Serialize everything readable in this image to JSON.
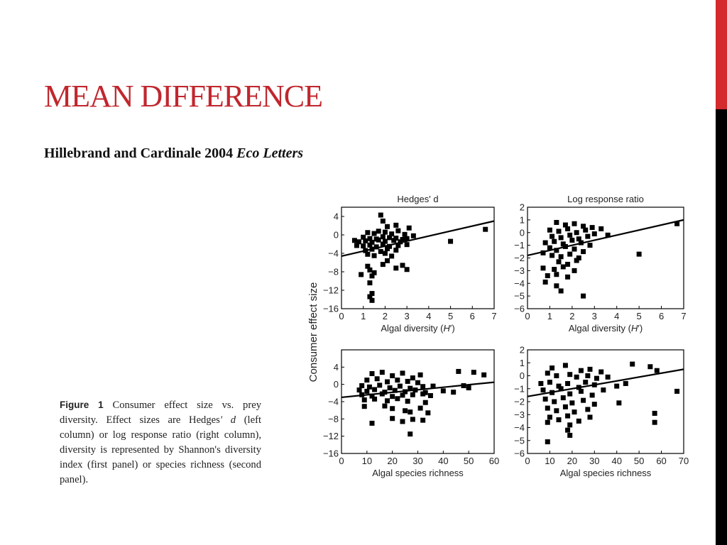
{
  "slide": {
    "title": "MEAN DIFFERENCE",
    "subtitle_text": "Hillebrand and Cardinale 2004",
    "subtitle_journal": "Eco Letters"
  },
  "caption": {
    "label": "Figure 1",
    "text_1": "Consumer effect size vs. prey diversity. Effect sizes are Hedges",
    "prime": "′",
    "d_symbol": "d",
    "text_2": "(left column) or log response ratio (right column), diversity is represented by Shannon's diversity index (first panel) or species richness (second panel)."
  },
  "figure": {
    "shared_ylabel": "Consumer effect size"
  },
  "colors": {
    "title": "#c0272d",
    "accent_red": "#d42a2e",
    "accent_black": "#000000",
    "marker": "#000000"
  },
  "chart_data": [
    {
      "type": "scatter",
      "title": "Hedges' d",
      "xlabel_prefix": "Algal diversity (",
      "xlabel_italic": "H",
      "xlabel_suffix": "′)",
      "xlim": [
        0,
        7
      ],
      "ylim": [
        -16,
        6
      ],
      "xticks": [
        0,
        1,
        2,
        3,
        4,
        5,
        6,
        7
      ],
      "yticks": [
        4,
        0,
        -4,
        -8,
        -12,
        -16
      ],
      "trendline": [
        [
          0,
          -4.6
        ],
        [
          7,
          3.0
        ]
      ],
      "points": [
        [
          1.8,
          4.3
        ],
        [
          1.9,
          3.0
        ],
        [
          2.1,
          1.8
        ],
        [
          2.5,
          2.1
        ],
        [
          3.1,
          1.5
        ],
        [
          1.2,
          0.5
        ],
        [
          1.5,
          0.3
        ],
        [
          1.7,
          0.8
        ],
        [
          2.0,
          0.6
        ],
        [
          2.3,
          0.2
        ],
        [
          2.6,
          0.9
        ],
        [
          2.9,
          0.1
        ],
        [
          3.3,
          -0.2
        ],
        [
          1.0,
          -0.5
        ],
        [
          1.3,
          -0.8
        ],
        [
          1.6,
          -0.9
        ],
        [
          1.9,
          -0.4
        ],
        [
          2.2,
          -0.6
        ],
        [
          2.5,
          -0.7
        ],
        [
          2.8,
          -1.0
        ],
        [
          3.0,
          -0.8
        ],
        [
          0.6,
          -1.2
        ],
        [
          0.8,
          -1.5
        ],
        [
          1.1,
          -1.3
        ],
        [
          1.4,
          -1.6
        ],
        [
          1.7,
          -1.1
        ],
        [
          2.0,
          -1.4
        ],
        [
          2.4,
          -1.2
        ],
        [
          2.7,
          -1.5
        ],
        [
          0.7,
          -2.3
        ],
        [
          1.0,
          -2.4
        ],
        [
          1.3,
          -2.2
        ],
        [
          1.6,
          -2.6
        ],
        [
          1.9,
          -2.0
        ],
        [
          2.2,
          -2.5
        ],
        [
          2.6,
          -2.3
        ],
        [
          3.0,
          -2.1
        ],
        [
          1.1,
          -3.4
        ],
        [
          1.4,
          -3.1
        ],
        [
          1.8,
          -3.6
        ],
        [
          2.1,
          -3.0
        ],
        [
          2.5,
          -3.3
        ],
        [
          1.2,
          -4.2
        ],
        [
          1.5,
          -4.5
        ],
        [
          2.0,
          -4.0
        ],
        [
          2.3,
          -4.6
        ],
        [
          2.1,
          -5.6
        ],
        [
          1.9,
          -6.4
        ],
        [
          1.2,
          -6.8
        ],
        [
          2.5,
          -7.2
        ],
        [
          2.8,
          -6.6
        ],
        [
          1.3,
          -7.6
        ],
        [
          1.5,
          -8.2
        ],
        [
          1.4,
          -8.9
        ],
        [
          0.9,
          -8.6
        ],
        [
          1.3,
          -10.4
        ],
        [
          3.0,
          -7.5
        ],
        [
          1.4,
          -12.7
        ],
        [
          1.3,
          -13.4
        ],
        [
          1.4,
          -14.2
        ],
        [
          5.0,
          -1.4
        ],
        [
          6.6,
          1.2
        ]
      ]
    },
    {
      "type": "scatter",
      "title": "Log response ratio",
      "xlabel_prefix": "Algal diversity (",
      "xlabel_italic": "H",
      "xlabel_suffix": "′)",
      "xlim": [
        0,
        7
      ],
      "ylim": [
        -6,
        2
      ],
      "xticks": [
        0,
        1,
        2,
        3,
        4,
        5,
        6,
        7
      ],
      "yticks": [
        2,
        1,
        0,
        -1,
        -2,
        -3,
        -4,
        -5,
        -6
      ],
      "trendline": [
        [
          0,
          -1.8
        ],
        [
          7,
          1.0
        ]
      ],
      "points": [
        [
          1.3,
          0.8
        ],
        [
          1.7,
          0.6
        ],
        [
          2.1,
          0.7
        ],
        [
          2.5,
          0.5
        ],
        [
          2.9,
          0.4
        ],
        [
          3.3,
          0.3
        ],
        [
          1.0,
          0.2
        ],
        [
          1.4,
          0.1
        ],
        [
          1.8,
          0.3
        ],
        [
          2.2,
          0.0
        ],
        [
          2.6,
          0.2
        ],
        [
          3.0,
          -0.1
        ],
        [
          3.6,
          -0.2
        ],
        [
          1.1,
          -0.3
        ],
        [
          1.5,
          -0.4
        ],
        [
          1.9,
          -0.2
        ],
        [
          2.3,
          -0.5
        ],
        [
          2.7,
          -0.3
        ],
        [
          0.8,
          -0.8
        ],
        [
          1.2,
          -0.7
        ],
        [
          1.6,
          -0.9
        ],
        [
          2.0,
          -0.6
        ],
        [
          2.4,
          -0.8
        ],
        [
          2.8,
          -1.0
        ],
        [
          1.0,
          -1.2
        ],
        [
          1.3,
          -1.4
        ],
        [
          1.7,
          -1.1
        ],
        [
          2.1,
          -1.3
        ],
        [
          2.5,
          -1.5
        ],
        [
          0.7,
          -1.6
        ],
        [
          1.1,
          -1.8
        ],
        [
          1.5,
          -1.9
        ],
        [
          1.9,
          -1.7
        ],
        [
          2.3,
          -2.0
        ],
        [
          1.4,
          -2.3
        ],
        [
          1.8,
          -2.5
        ],
        [
          2.2,
          -2.2
        ],
        [
          0.7,
          -2.8
        ],
        [
          1.2,
          -2.9
        ],
        [
          1.6,
          -2.7
        ],
        [
          2.1,
          -3.0
        ],
        [
          0.9,
          -3.4
        ],
        [
          1.3,
          -3.3
        ],
        [
          1.8,
          -3.5
        ],
        [
          0.8,
          -3.9
        ],
        [
          1.3,
          -4.2
        ],
        [
          1.5,
          -4.6
        ],
        [
          2.5,
          -5.0
        ],
        [
          5.0,
          -1.7
        ],
        [
          6.7,
          0.7
        ]
      ]
    },
    {
      "type": "scatter",
      "title": "",
      "xlabel_prefix": "Algal species richness",
      "xlabel_italic": "",
      "xlabel_suffix": "",
      "xlim": [
        0,
        60
      ],
      "ylim": [
        -16,
        8
      ],
      "xticks": [
        0,
        10,
        20,
        30,
        40,
        50,
        60
      ],
      "yticks": [
        4,
        0,
        -4,
        -8,
        -12,
        -16
      ],
      "trendline": [
        [
          0,
          -3.0
        ],
        [
          60,
          0.5
        ]
      ],
      "points": [
        [
          12,
          2.5
        ],
        [
          16,
          2.8
        ],
        [
          20,
          2.0
        ],
        [
          24,
          2.6
        ],
        [
          28,
          1.5
        ],
        [
          31,
          2.2
        ],
        [
          46,
          3.0
        ],
        [
          52,
          2.8
        ],
        [
          56,
          2.2
        ],
        [
          10,
          1.0
        ],
        [
          14,
          1.3
        ],
        [
          18,
          0.6
        ],
        [
          22,
          1.0
        ],
        [
          26,
          0.7
        ],
        [
          30,
          0.4
        ],
        [
          8,
          -0.3
        ],
        [
          11,
          -0.6
        ],
        [
          15,
          -0.2
        ],
        [
          19,
          -0.8
        ],
        [
          23,
          -0.4
        ],
        [
          27,
          -0.9
        ],
        [
          32,
          -0.5
        ],
        [
          36,
          -0.4
        ],
        [
          48,
          -0.3
        ],
        [
          50,
          -0.8
        ],
        [
          7,
          -1.3
        ],
        [
          10,
          -1.6
        ],
        [
          13,
          -1.2
        ],
        [
          17,
          -1.8
        ],
        [
          21,
          -1.4
        ],
        [
          25,
          -1.7
        ],
        [
          29,
          -1.3
        ],
        [
          33,
          -1.9
        ],
        [
          40,
          -1.5
        ],
        [
          44,
          -1.8
        ],
        [
          8,
          -2.4
        ],
        [
          12,
          -2.7
        ],
        [
          16,
          -2.2
        ],
        [
          20,
          -2.8
        ],
        [
          24,
          -2.5
        ],
        [
          28,
          -2.4
        ],
        [
          32,
          -2.2
        ],
        [
          35,
          -2.6
        ],
        [
          9,
          -3.6
        ],
        [
          13,
          -3.4
        ],
        [
          18,
          -3.8
        ],
        [
          22,
          -3.3
        ],
        [
          26,
          -3.9
        ],
        [
          33,
          -4.2
        ],
        [
          9,
          -5.1
        ],
        [
          17,
          -5.0
        ],
        [
          20,
          -5.6
        ],
        [
          25,
          -6.1
        ],
        [
          31,
          -5.5
        ],
        [
          27,
          -6.4
        ],
        [
          34,
          -6.6
        ],
        [
          20,
          -7.9
        ],
        [
          28,
          -8.1
        ],
        [
          32,
          -8.3
        ],
        [
          24,
          -8.6
        ],
        [
          12,
          -9.0
        ],
        [
          27,
          -11.5
        ]
      ]
    },
    {
      "type": "scatter",
      "title": "",
      "xlabel_prefix": "Algal species richness",
      "xlabel_italic": "",
      "xlabel_suffix": "",
      "xlim": [
        0,
        70
      ],
      "ylim": [
        -6,
        2
      ],
      "xticks": [
        0,
        10,
        20,
        30,
        40,
        50,
        60,
        70
      ],
      "yticks": [
        2,
        1,
        0,
        -1,
        -2,
        -3,
        -4,
        -5,
        -6
      ],
      "trendline": [
        [
          0,
          -1.6
        ],
        [
          70,
          0.5
        ]
      ],
      "points": [
        [
          11,
          0.6
        ],
        [
          17,
          0.8
        ],
        [
          24,
          0.4
        ],
        [
          28,
          0.5
        ],
        [
          33,
          0.3
        ],
        [
          47,
          0.9
        ],
        [
          55,
          0.7
        ],
        [
          58,
          0.4
        ],
        [
          9,
          0.2
        ],
        [
          13,
          0.0
        ],
        [
          19,
          0.1
        ],
        [
          22,
          -0.1
        ],
        [
          27,
          0.0
        ],
        [
          31,
          -0.2
        ],
        [
          36,
          -0.1
        ],
        [
          6,
          -0.6
        ],
        [
          10,
          -0.5
        ],
        [
          14,
          -0.8
        ],
        [
          18,
          -0.6
        ],
        [
          23,
          -0.9
        ],
        [
          26,
          -0.5
        ],
        [
          30,
          -0.7
        ],
        [
          40,
          -0.8
        ],
        [
          44,
          -0.6
        ],
        [
          7,
          -1.1
        ],
        [
          11,
          -1.3
        ],
        [
          15,
          -1.0
        ],
        [
          19,
          -1.4
        ],
        [
          24,
          -1.2
        ],
        [
          29,
          -1.5
        ],
        [
          34,
          -1.1
        ],
        [
          8,
          -1.8
        ],
        [
          12,
          -2.0
        ],
        [
          16,
          -1.7
        ],
        [
          20,
          -2.1
        ],
        [
          25,
          -1.9
        ],
        [
          30,
          -2.2
        ],
        [
          41,
          -2.1
        ],
        [
          9,
          -2.5
        ],
        [
          13,
          -2.7
        ],
        [
          17,
          -2.4
        ],
        [
          21,
          -2.8
        ],
        [
          27,
          -2.6
        ],
        [
          10,
          -3.2
        ],
        [
          14,
          -3.4
        ],
        [
          18,
          -3.1
        ],
        [
          28,
          -3.2
        ],
        [
          9,
          -3.6
        ],
        [
          19,
          -3.8
        ],
        [
          23,
          -3.5
        ],
        [
          18,
          -4.2
        ],
        [
          19,
          -4.6
        ],
        [
          9,
          -5.1
        ],
        [
          57,
          -2.9
        ],
        [
          57,
          -3.6
        ],
        [
          67,
          -1.2
        ]
      ]
    }
  ]
}
